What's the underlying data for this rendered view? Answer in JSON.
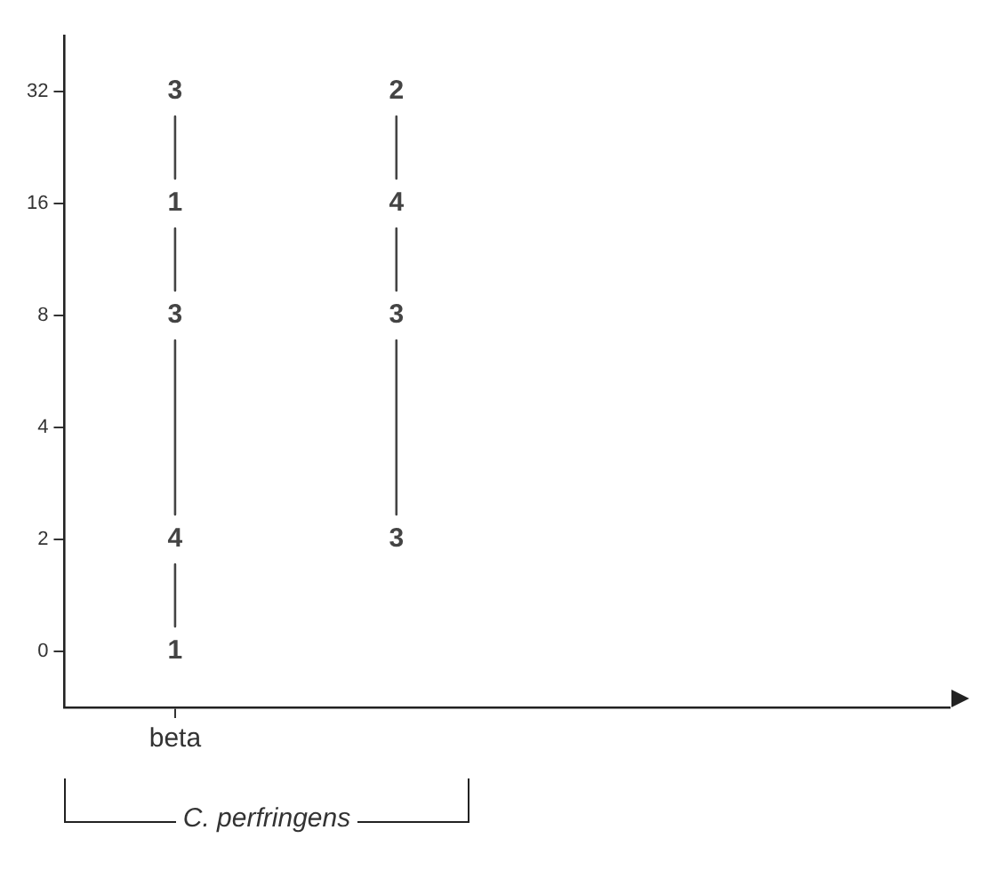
{
  "chart_data": {
    "type": "heatmap",
    "categories": [
      "beta",
      null,
      null,
      null
    ],
    "y_categories": [
      "32",
      "16",
      "8",
      "4",
      "2",
      "0"
    ],
    "cells": [
      [
        3,
        2,
        null,
        null
      ],
      [
        1,
        4,
        null,
        null
      ],
      [
        3,
        3,
        null,
        null
      ],
      [
        null,
        null,
        null,
        null
      ],
      [
        4,
        3,
        null,
        null
      ],
      [
        1,
        null,
        null,
        null
      ]
    ],
    "data_labels": true,
    "grid": false,
    "legend": false,
    "annotations": [
      "C. perfringens"
    ]
  }
}
